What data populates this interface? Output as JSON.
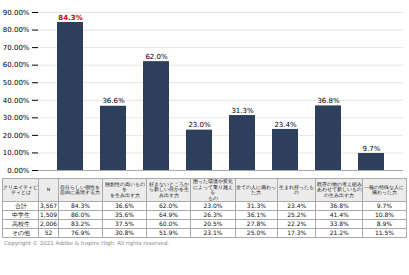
{
  "chart_data": {
    "type": "bar",
    "categories": [
      null,
      null,
      null,
      null,
      null,
      null,
      null,
      null
    ],
    "values": [
      84.3,
      36.6,
      62.0,
      23.0,
      31.3,
      23.4,
      36.8,
      9.7
    ],
    "value_labels": [
      "84.3%",
      "36.6%",
      "62.0%",
      "23.0%",
      "31.3%",
      "23.4%",
      "36.8%",
      "9.7%"
    ],
    "data_labels": true,
    "color": "#2e3f5c",
    "label_color": "#000000",
    "highlight_index": 0,
    "highlight_color": "#cc0000",
    "ylim": [
      0,
      90
    ],
    "yticks": [
      {
        "value": 0,
        "label": "0.00%"
      },
      {
        "value": 10,
        "label": "10.00%"
      },
      {
        "value": 20,
        "label": "20.00%"
      },
      {
        "value": 30,
        "label": "30.00%"
      },
      {
        "value": 40,
        "label": "40.00%"
      },
      {
        "value": 50,
        "label": "50.00%"
      },
      {
        "value": 60,
        "label": "60.00%"
      },
      {
        "value": 70,
        "label": "70.00%"
      },
      {
        "value": 80,
        "label": "80.00%"
      },
      {
        "value": 90,
        "label": "90.00%"
      }
    ],
    "grid": true,
    "tick_labels": "y",
    "table": {
      "header": [
        "クリエイティビ\nティとは",
        "N",
        "自分らしい個性を\n自由に表現する力",
        "独創性の高いものを\nを生み出す力",
        "好きないところか\nら新しい何かを生\nみ出す力",
        "困った環境や変化\nによって乗り越える\nもの",
        "全ての人に備わっ\nた力",
        "生まれ持ったもの",
        "既存の物の考え組み\nあわせて新しいもの\nの生み出す力",
        "一種の特殊な人に\n備わった力"
      ],
      "rows": [
        [
          "合計",
          "3,567",
          "84.3%",
          "36.6%",
          "62.0%",
          "23.0%",
          "31.3%",
          "23.4%",
          "36.8%",
          "9.7%"
        ],
        [
          "中学生",
          "1,509",
          "86.0%",
          "35.6%",
          "64.9%",
          "26.3%",
          "36.1%",
          "25.2%",
          "41.4%",
          "10.8%"
        ],
        [
          "高校生",
          "2,006",
          "83.2%",
          "37.5%",
          "60.0%",
          "20.5%",
          "27.8%",
          "22.2%",
          "33.8%",
          "8.9%"
        ],
        [
          "その他",
          "52",
          "76.9%",
          "30.8%",
          "51.9%",
          "23.1%",
          "25.0%",
          "17.3%",
          "21.2%",
          "11.5%"
        ]
      ]
    },
    "caption": "Copyright © 2021 Adobe & Inspire High. All rights reserved."
  }
}
